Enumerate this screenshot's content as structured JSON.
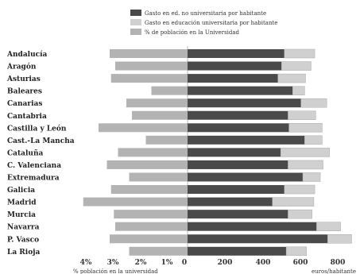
{
  "chart_data": {
    "type": "bar",
    "subtype": "back-to-back horizontal stacked bar",
    "categories": [
      "Andalucía",
      "Aragón",
      "Asturias",
      "Baleares",
      "Canarias",
      "Cantabria",
      "Castilla y León",
      "Cast.-La Mancha",
      "Cataluña",
      "C. Valenciana",
      "Extremadura",
      "Galicia",
      "Madrid",
      "Murcia",
      "Navarra",
      "P. Vasco",
      "La Rioja"
    ],
    "series": [
      {
        "name": "Gasto en ed. no universitaria por habitante",
        "side": "right",
        "color": "#4a4a4a",
        "values": [
          525,
          510,
          490,
          570,
          615,
          545,
          550,
          635,
          505,
          545,
          625,
          525,
          460,
          545,
          700,
          760,
          535
        ]
      },
      {
        "name": "Gasto en educación universitaria por habitante",
        "side": "right",
        "color": "#d0d0d0",
        "values": [
          165,
          160,
          150,
          65,
          140,
          150,
          180,
          95,
          265,
          190,
          95,
          165,
          225,
          130,
          130,
          130,
          110
        ]
      },
      {
        "name": "% de población en la Universidad",
        "side": "left",
        "color": "#b3b3b3",
        "values": [
          2.8,
          2.6,
          2.75,
          1.3,
          2.2,
          2.0,
          3.2,
          1.5,
          2.5,
          2.9,
          2.1,
          2.75,
          3.75,
          2.65,
          2.6,
          2.8,
          2.1
        ]
      }
    ],
    "left_axis": {
      "ticks": [
        "4%",
        "3%",
        "2%",
        "1%",
        "0"
      ],
      "label": "% población en la universidad",
      "range": [
        0,
        4
      ]
    },
    "right_axis": {
      "ticks": [
        "200",
        "400",
        "600",
        "800"
      ],
      "label": "euros/habitante",
      "range": [
        0,
        900
      ]
    }
  }
}
